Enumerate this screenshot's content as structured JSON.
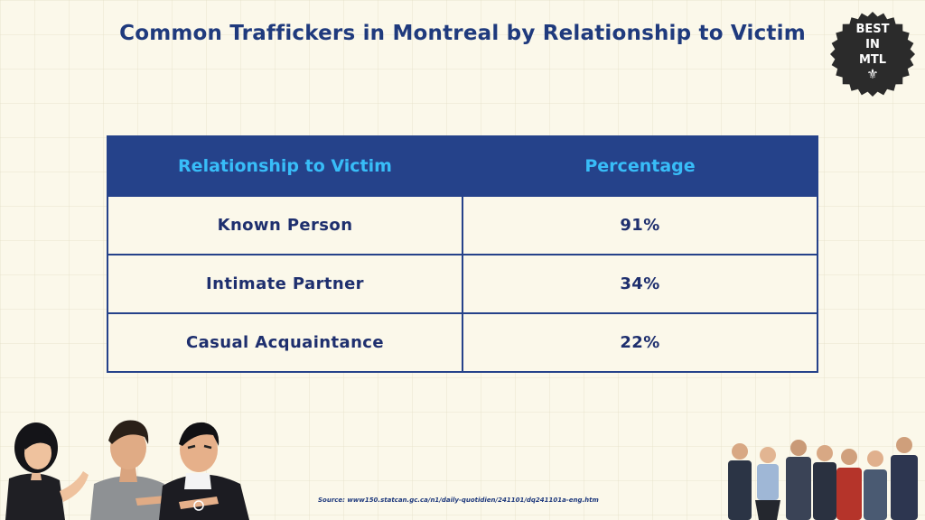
{
  "title": "Common Traffickers in Montreal by Relationship to Victim",
  "badge": {
    "lines": [
      "BEST",
      "IN",
      "MTL"
    ],
    "symbol": "⚜",
    "icon": "fleur-de-lis-icon",
    "color": "#2b2b2b"
  },
  "chart_data": {
    "type": "table",
    "columns": [
      "Relationship to Victim",
      "Percentage"
    ],
    "rows": [
      [
        "Known Person",
        "91%"
      ],
      [
        "Intimate Partner",
        "34%"
      ],
      [
        "Casual Acquaintance",
        "22%"
      ]
    ],
    "values": [
      91,
      34,
      22
    ],
    "header_color": "#25428a",
    "header_text_color": "#38bdf8"
  },
  "source": "Source: www150.statcan.gc.ca/n1/daily-quotidien/241101/dq241101a-eng.htm"
}
